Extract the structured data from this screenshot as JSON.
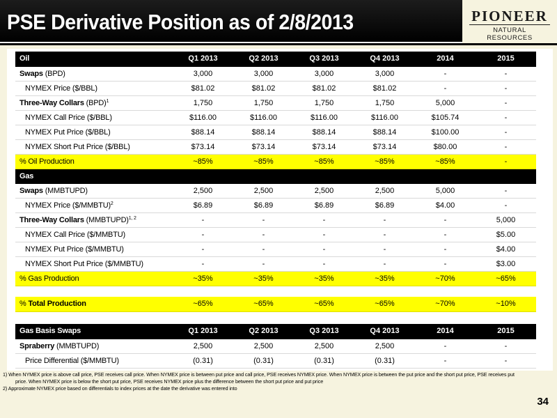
{
  "header": {
    "title": "PSE Derivative Position as of 2/8/2013",
    "logo_main": "PIONEER",
    "logo_sub": "NATURAL RESOURCES"
  },
  "columns": [
    "Q1 2013",
    "Q2 2013",
    "Q3 2013",
    "Q4 2013",
    "2014",
    "2015"
  ],
  "oil": {
    "header": "Oil",
    "swaps": {
      "bold": "Swaps",
      "rest": " (BPD)",
      "values": [
        "3,000",
        "3,000",
        "3,000",
        "3,000",
        "-",
        "-"
      ]
    },
    "swaps_price": {
      "label": "NYMEX Price ($/BBL)",
      "values": [
        "$81.02",
        "$81.02",
        "$81.02",
        "$81.02",
        "-",
        "-"
      ]
    },
    "collars": {
      "bold": "Three-Way Collars",
      "rest": " (BPD)",
      "sup": "1",
      "values": [
        "1,750",
        "1,750",
        "1,750",
        "1,750",
        "5,000",
        "-"
      ]
    },
    "call": {
      "label": "NYMEX Call Price ($/BBL)",
      "values": [
        "$116.00",
        "$116.00",
        "$116.00",
        "$116.00",
        "$105.74",
        "-"
      ]
    },
    "put": {
      "label": "NYMEX Put Price ($/BBL)",
      "values": [
        "$88.14",
        "$88.14",
        "$88.14",
        "$88.14",
        "$100.00",
        "-"
      ]
    },
    "short_put": {
      "label": "NYMEX Short Put Price ($/BBL)",
      "values": [
        "$73.14",
        "$73.14",
        "$73.14",
        "$73.14",
        "$80.00",
        "-"
      ]
    },
    "production": {
      "label": "% Oil Production",
      "values": [
        "~85%",
        "~85%",
        "~85%",
        "~85%",
        "~85%",
        "-"
      ]
    }
  },
  "gas": {
    "header": "Gas",
    "swaps": {
      "bold": "Swaps",
      "rest": " (MMBTUPD)",
      "values": [
        "2,500",
        "2,500",
        "2,500",
        "2,500",
        "5,000",
        "-"
      ]
    },
    "swaps_price": {
      "label": "NYMEX Price ($/MMBTU)",
      "sup": "2",
      "values": [
        "$6.89",
        "$6.89",
        "$6.89",
        "$6.89",
        "$4.00",
        "-"
      ]
    },
    "collars": {
      "bold": "Three-Way Collars",
      "rest": " (MMBTUPD)",
      "sup": "1, 2",
      "values": [
        "-",
        "-",
        "-",
        "-",
        "-",
        "5,000"
      ]
    },
    "call": {
      "label": "NYMEX Call Price ($/MMBTU)",
      "values": [
        "-",
        "-",
        "-",
        "-",
        "-",
        "$5.00"
      ]
    },
    "put": {
      "label": "NYMEX Put Price ($/MMBTU)",
      "values": [
        "-",
        "-",
        "-",
        "-",
        "-",
        "$4.00"
      ]
    },
    "short_put": {
      "label": "NYMEX Short Put Price ($/MMBTU)",
      "values": [
        "-",
        "-",
        "-",
        "-",
        "-",
        "$3.00"
      ]
    },
    "production": {
      "label": "% Gas Production",
      "values": [
        "~35%",
        "~35%",
        "~35%",
        "~35%",
        "~70%",
        "~65%"
      ]
    }
  },
  "total": {
    "prefix": "% ",
    "bold": "Total Production",
    "values": [
      "~65%",
      "~65%",
      "~65%",
      "~65%",
      "~70%",
      "~10%"
    ]
  },
  "basis": {
    "header": "Gas Basis Swaps",
    "columns": [
      "Q1 2013",
      "Q2 2013",
      "Q3 2013",
      "Q4 2013",
      "2014",
      "2015"
    ],
    "spraberry": {
      "bold": "Spraberry",
      "rest": " (MMBTUPD)",
      "values": [
        "2,500",
        "2,500",
        "2,500",
        "2,500",
        "-",
        "-"
      ]
    },
    "differential": {
      "label": "Price Differential ($/MMBTU)",
      "values": [
        "(0.31)",
        "(0.31)",
        "(0.31)",
        "(0.31)",
        "-",
        "-"
      ]
    }
  },
  "footnotes": {
    "f1a": "1) When NYMEX price is above call price, PSE receives call price.  When NYMEX price is between put price and call price, PSE receives NYMEX price.  When NYMEX price is between the put price and the short put price, PSE receives put",
    "f1b": "price.  When NYMEX price is below the short put price, PSE receives NYMEX price plus the difference between the short put price and put price",
    "f2": "2) Approximate NYMEX price based on differentials to index prices at the date the derivative was entered into"
  },
  "page_number": "34"
}
